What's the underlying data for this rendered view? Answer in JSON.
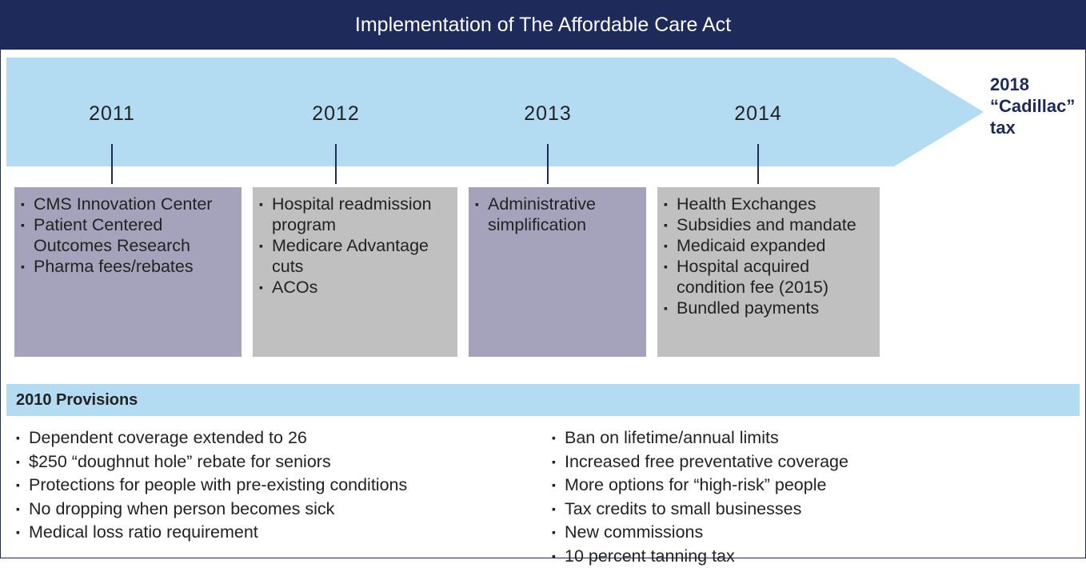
{
  "header": {
    "title": "Implementation of The Affordable Care Act"
  },
  "timeline": {
    "end_label": [
      "2018",
      "“Cadillac”",
      "tax"
    ],
    "years": [
      {
        "year": "2011",
        "items": [
          "CMS Innovation Center",
          "Patient Centered Outcomes Research",
          "Pharma fees/rebates"
        ]
      },
      {
        "year": "2012",
        "items": [
          "Hospital readmission program",
          "Medicare Advantage cuts",
          "ACOs"
        ]
      },
      {
        "year": "2013",
        "items": [
          "Administrative simplification"
        ]
      },
      {
        "year": "2014",
        "items": [
          "Health Exchanges",
          "Subsidies and mandate",
          "Medicaid expanded",
          "Hospital acquired condition fee (2015)",
          "Bundled payments"
        ]
      }
    ]
  },
  "provisions": {
    "title": "2010 Provisions",
    "left": [
      "Dependent coverage extended to 26",
      "$250 “doughnut hole” rebate for seniors",
      "Protections for people with pre-existing conditions",
      "No dropping when person becomes sick",
      "Medical loss ratio requirement"
    ],
    "right": [
      "Ban on lifetime/annual limits",
      "Increased free preventative coverage",
      "More options for “high-risk” people",
      "Tax credits to small businesses",
      "New commissions",
      "10 percent tanning tax"
    ]
  }
}
